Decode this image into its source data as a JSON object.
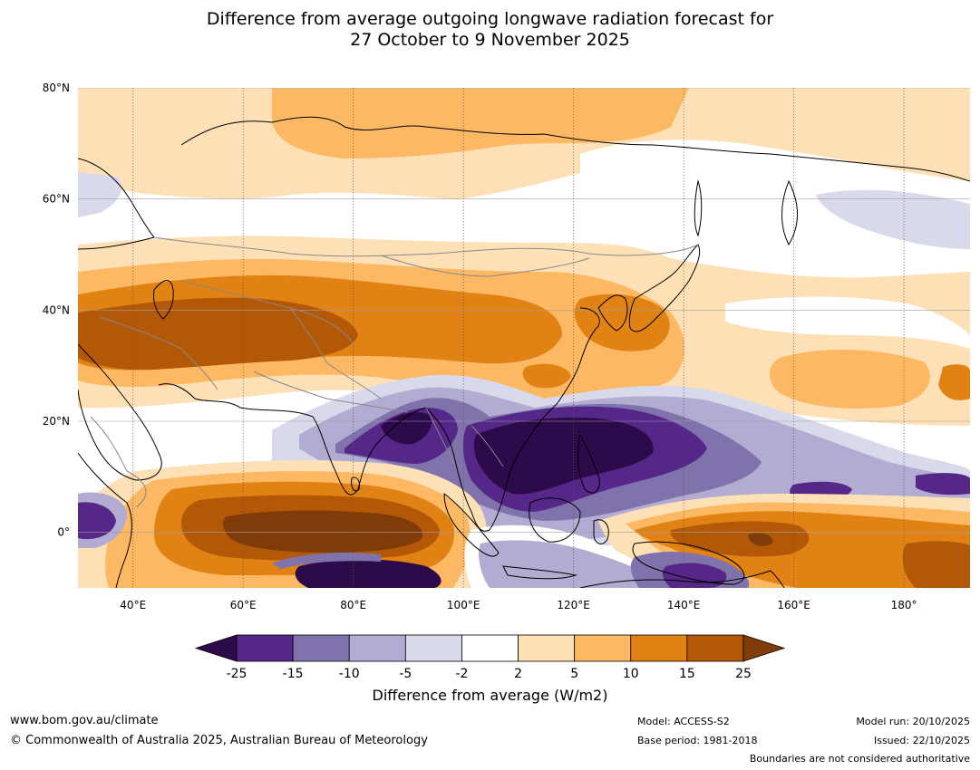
{
  "title": {
    "line1": "Difference from average outgoing longwave radiation forecast for",
    "line2": "27 October to 9 November 2025"
  },
  "map": {
    "lon_range": [
      30,
      192
    ],
    "lat_range": [
      -10,
      80
    ],
    "lat_ticks": [
      {
        "value": 80,
        "label": "80°N"
      },
      {
        "value": 60,
        "label": "60°N"
      },
      {
        "value": 40,
        "label": "40°N"
      },
      {
        "value": 20,
        "label": "20°N"
      },
      {
        "value": 0,
        "label": "0°"
      }
    ],
    "lon_ticks": [
      {
        "value": 40,
        "label": "40°E"
      },
      {
        "value": 60,
        "label": "60°E"
      },
      {
        "value": 80,
        "label": "80°E"
      },
      {
        "value": 100,
        "label": "100°E"
      },
      {
        "value": 120,
        "label": "120°E"
      },
      {
        "value": 140,
        "label": "140°E"
      },
      {
        "value": 160,
        "label": "160°E"
      },
      {
        "value": 180,
        "label": "180°"
      }
    ],
    "colors": {
      "lt-25": "#2d0a4a",
      "-25to-15": "#542788",
      "-15to-10": "#8073ac",
      "-10to-5": "#b2abd2",
      "-5to-2": "#d8daeb",
      "-2to2": "#ffffff",
      "2to5": "#fee0b6",
      "5to10": "#fdb863",
      "10to15": "#e08214",
      "15to25": "#b35806",
      "gt25": "#7f3b08"
    }
  },
  "colorbar": {
    "title": "Difference from average (W/m2)",
    "labels": [
      "-25",
      "-15",
      "-10",
      "-5",
      "-2",
      "2",
      "5",
      "10",
      "15",
      "25"
    ],
    "colors": [
      "#542788",
      "#8073ac",
      "#b2abd2",
      "#d8daeb",
      "#ffffff",
      "#fee0b6",
      "#fdb863",
      "#e08214",
      "#b35806"
    ],
    "low_extend_color": "#2d0a4a",
    "high_extend_color": "#7f3b08"
  },
  "footer": {
    "website": "www.bom.gov.au/climate",
    "copyright": "© Commonwealth of Australia 2025, Australian Bureau of Meteorology",
    "model": "Model: ACCESS-S2",
    "base_period": "Base period: 1981-2018",
    "model_run": "Model run: 20/10/2025",
    "issued": "Issued: 22/10/2025",
    "disclaimer": "Boundaries are not considered authoritative"
  }
}
